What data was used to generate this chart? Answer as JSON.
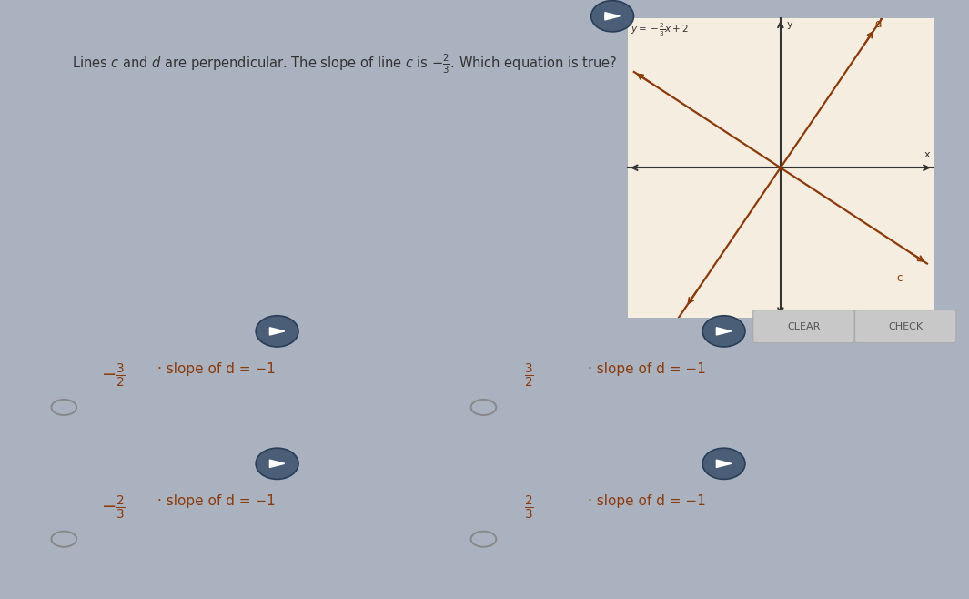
{
  "bg_color": "#aab2c0",
  "question_box_color": "#f0eff0",
  "graph_box_color": "#f5ede0",
  "answer_box_color": "#f0eff0",
  "question_text": "Lines c and d are perpendicular. The slope of line c is −2/3. Which equation is true?",
  "graph_eq": "y=−2/3x+2",
  "option_texts": [
    "-3/2 · slope of d = -1",
    "3/2 · slope of d = -1",
    "-2/3 · slope of d = -1",
    "2/3 · slope of d = -1"
  ],
  "line_color": "#8B3A0A",
  "axis_color": "#333333",
  "text_color": "#333333",
  "option_color": "#8B3A0A",
  "btn_color": "#c8c8c8",
  "btn_text_color": "#555555",
  "speaker_fill": "#4a5e78",
  "speaker_edge": "#2a3e58",
  "radio_edge": "#888888"
}
